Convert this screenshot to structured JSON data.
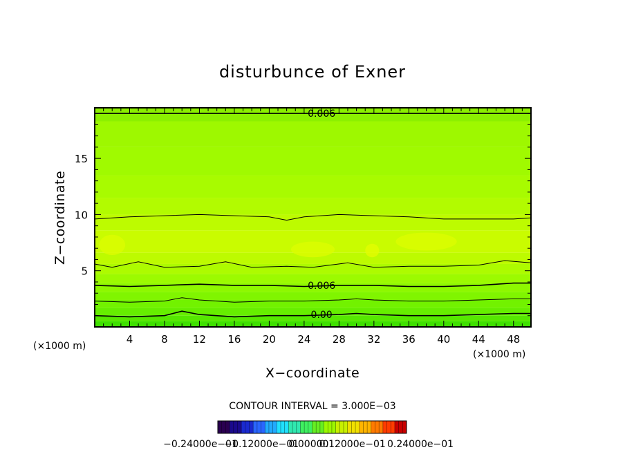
{
  "chart_data": {
    "type": "contour",
    "title": "disturbunce of Exner",
    "xlabel": "X−coordinate",
    "ylabel": "Z−coordinate",
    "x_unit_label": "(×1000 m)",
    "y_unit_label": "(×1000 m)",
    "xlim": [
      0,
      50
    ],
    "ylim": [
      0,
      19.5
    ],
    "x_ticks": [
      "4",
      "8",
      "12",
      "16",
      "20",
      "24",
      "28",
      "32",
      "36",
      "40",
      "44",
      "48"
    ],
    "y_ticks": [
      "5",
      "10",
      "15"
    ],
    "contour_interval_text": "CONTOUR INTERVAL = 3.000E−03",
    "contour_interval": 0.003,
    "contour_labels": [
      {
        "text": "0.006",
        "x": 26,
        "z": 19.0
      },
      {
        "text": "0.006",
        "x": 26,
        "z": 3.7
      },
      {
        "text": "0.00",
        "x": 26,
        "z": 1.1
      }
    ],
    "contours": [
      {
        "x": [
          0,
          4,
          8,
          12,
          16,
          20,
          22,
          24,
          28,
          32,
          36,
          40,
          44,
          48,
          50
        ],
        "z": [
          19.0,
          19.0,
          19.0,
          19.0,
          19.0,
          19.0,
          19.0,
          19.0,
          19.0,
          19.0,
          19.0,
          19.0,
          19.0,
          19.0,
          19.0
        ]
      },
      {
        "x": [
          0,
          4,
          8,
          12,
          16,
          20,
          22,
          24,
          28,
          32,
          36,
          40,
          44,
          48,
          50
        ],
        "z": [
          9.6,
          9.8,
          9.9,
          10.0,
          9.9,
          9.8,
          9.5,
          9.8,
          10.0,
          9.9,
          9.8,
          9.6,
          9.6,
          9.6,
          9.7
        ]
      },
      {
        "x": [
          0,
          2,
          5,
          8,
          12,
          15,
          18,
          22,
          25,
          29,
          32,
          36,
          40,
          44,
          47,
          50
        ],
        "z": [
          5.6,
          5.3,
          5.8,
          5.3,
          5.4,
          5.8,
          5.3,
          5.4,
          5.3,
          5.7,
          5.3,
          5.4,
          5.4,
          5.5,
          5.9,
          5.7
        ]
      },
      {
        "x": [
          0,
          4,
          8,
          12,
          16,
          20,
          24,
          28,
          32,
          36,
          40,
          44,
          48,
          50
        ],
        "z": [
          3.7,
          3.6,
          3.7,
          3.8,
          3.7,
          3.7,
          3.6,
          3.7,
          3.7,
          3.6,
          3.6,
          3.7,
          3.9,
          3.9
        ]
      },
      {
        "x": [
          0,
          4,
          8,
          10,
          12,
          16,
          20,
          24,
          28,
          30,
          32,
          36,
          40,
          44,
          48,
          50
        ],
        "z": [
          2.3,
          2.2,
          2.3,
          2.6,
          2.4,
          2.2,
          2.3,
          2.3,
          2.4,
          2.5,
          2.4,
          2.3,
          2.3,
          2.4,
          2.5,
          2.5
        ]
      },
      {
        "x": [
          0,
          4,
          8,
          10,
          12,
          16,
          20,
          24,
          28,
          30,
          32,
          36,
          40,
          44,
          48,
          50
        ],
        "z": [
          1.0,
          0.9,
          1.0,
          1.4,
          1.1,
          0.9,
          1.0,
          1.0,
          1.1,
          1.2,
          1.1,
          1.0,
          1.0,
          1.1,
          1.2,
          1.2
        ]
      }
    ],
    "color_bands": [
      {
        "z0": 0.0,
        "z1": 0.5,
        "color": "#3fe000"
      },
      {
        "z0": 0.5,
        "z1": 1.0,
        "color": "#55e800"
      },
      {
        "z0": 1.0,
        "z1": 1.7,
        "color": "#66ee00"
      },
      {
        "z0": 1.7,
        "z1": 2.4,
        "color": "#72f200"
      },
      {
        "z0": 2.4,
        "z1": 3.1,
        "color": "#80f500"
      },
      {
        "z0": 3.1,
        "z1": 3.9,
        "color": "#8ef800"
      },
      {
        "z0": 3.9,
        "z1": 4.7,
        "color": "#9cfa00"
      },
      {
        "z0": 4.7,
        "z1": 5.6,
        "color": "#adfb00"
      },
      {
        "z0": 5.6,
        "z1": 6.6,
        "color": "#bdfb00"
      },
      {
        "z0": 6.6,
        "z1": 8.6,
        "color": "#c9fc00"
      },
      {
        "z0": 8.6,
        "z1": 10.0,
        "color": "#bdfb00"
      },
      {
        "z0": 10.0,
        "z1": 11.5,
        "color": "#b2fb00"
      },
      {
        "z0": 11.5,
        "z1": 13.5,
        "color": "#a8fb00"
      },
      {
        "z0": 13.5,
        "z1": 16.0,
        "color": "#a0fa00"
      },
      {
        "z0": 16.0,
        "z1": 18.3,
        "color": "#9ef800"
      },
      {
        "z0": 18.3,
        "z1": 19.5,
        "color": "#8cf000"
      }
    ],
    "highlights": [
      {
        "x0": 0.5,
        "x1": 3.5,
        "z0": 6.4,
        "z1": 8.2,
        "color": "#dcfc00"
      },
      {
        "x0": 22.5,
        "x1": 27.5,
        "z0": 6.2,
        "z1": 7.6,
        "color": "#dcfc00"
      },
      {
        "x0": 34.5,
        "x1": 41.5,
        "z0": 6.8,
        "z1": 8.4,
        "color": "#dcfc00"
      },
      {
        "x0": 31.0,
        "x1": 32.6,
        "z0": 6.2,
        "z1": 7.4,
        "color": "#e2fc00"
      }
    ],
    "colorbar": {
      "tick_labels": [
        "−0.24000e−01",
        "−0.12000e−01",
        "0.00000",
        "0.12000e−01",
        "0.24000e−01"
      ],
      "colors": [
        "#2a0050",
        "#1a0a8c",
        "#1a2ad0",
        "#2a66ff",
        "#22aaff",
        "#20e0ff",
        "#30e8b0",
        "#3ff060",
        "#66ee22",
        "#9cf800",
        "#c8f000",
        "#f0e000",
        "#ffb400",
        "#ff7a00",
        "#ff3c00",
        "#c80000"
      ]
    }
  }
}
